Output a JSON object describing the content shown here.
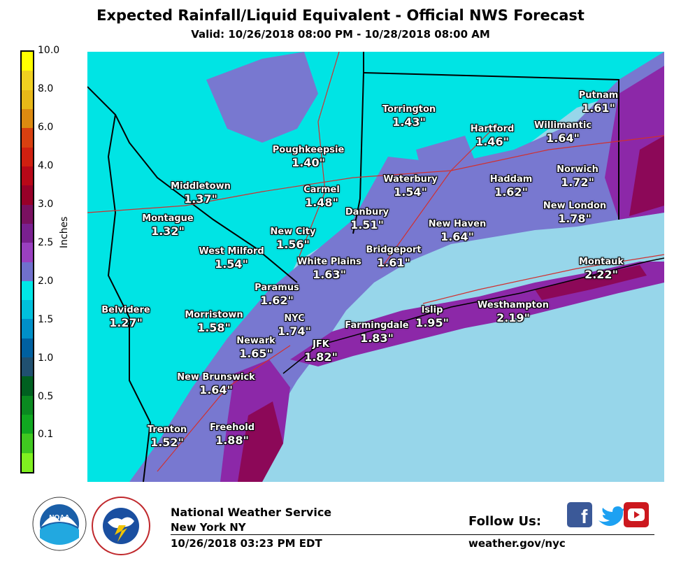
{
  "header": {
    "title": "Expected Rainfall/Liquid Equivalent - Official NWS Forecast",
    "valid": "Valid: 10/26/2018 08:00 PM - 10/28/2018 08:00 AM"
  },
  "legend": {
    "unit": "Inches",
    "labels": [
      "10.0",
      "8.0",
      "6.0",
      "4.0",
      "3.0",
      "2.5",
      "2.0",
      "1.5",
      "1.0",
      "0.5",
      "0.1"
    ],
    "colors": [
      "#ffff00",
      "#f0d020",
      "#e8b818",
      "#dc8a10",
      "#d84010",
      "#d02010",
      "#b80818",
      "#980028",
      "#7a1060",
      "#7a2090",
      "#9a40c0",
      "#7070cc",
      "#00e6e6",
      "#00c0dc",
      "#0090c8",
      "#0060a0",
      "#205070",
      "#006020",
      "#0a8a20",
      "#10a820",
      "#40c820",
      "#80f020"
    ]
  },
  "map": {
    "colors": {
      "ocean": "#97d6ea",
      "low": "#00e4e4",
      "mid": "#7878d0",
      "high": "#8c28a8",
      "vhigh": "#8c0858"
    },
    "cities": [
      {
        "name": "Torrington",
        "value": "1.43\""
      },
      {
        "name": "Putnam",
        "value": "1.61\""
      },
      {
        "name": "Hartford",
        "value": "1.46\""
      },
      {
        "name": "Willimantic",
        "value": "1.64\""
      },
      {
        "name": "Poughkeepsie",
        "value": "1.40\""
      },
      {
        "name": "Norwich",
        "value": "1.72\""
      },
      {
        "name": "Middletown",
        "value": "1.37\""
      },
      {
        "name": "Carmel",
        "value": "1.48\""
      },
      {
        "name": "Waterbury",
        "value": "1.54\""
      },
      {
        "name": "Haddam",
        "value": "1.62\""
      },
      {
        "name": "Danbury",
        "value": "1.51\""
      },
      {
        "name": "New London",
        "value": "1.78\""
      },
      {
        "name": "Montague",
        "value": "1.32\""
      },
      {
        "name": "New City",
        "value": "1.56\""
      },
      {
        "name": "New Haven",
        "value": "1.64\""
      },
      {
        "name": "West Milford",
        "value": "1.54\""
      },
      {
        "name": "Bridgeport",
        "value": "1.61\""
      },
      {
        "name": "White Plains",
        "value": "1.63\""
      },
      {
        "name": "Montauk",
        "value": "2.22\""
      },
      {
        "name": "Paramus",
        "value": "1.62\""
      },
      {
        "name": "Belvidere",
        "value": "1.27\""
      },
      {
        "name": "Westhampton",
        "value": "2.19\""
      },
      {
        "name": "Morristown",
        "value": "1.58\""
      },
      {
        "name": "NYC",
        "value": "1.74\""
      },
      {
        "name": "Islip",
        "value": "1.95\""
      },
      {
        "name": "Farmingdale",
        "value": "1.83\""
      },
      {
        "name": "Newark",
        "value": "1.65\""
      },
      {
        "name": "JFK",
        "value": "1.82\""
      },
      {
        "name": "New Brunswick",
        "value": "1.64\""
      },
      {
        "name": "Trenton",
        "value": "1.52\""
      },
      {
        "name": "Freehold",
        "value": "1.88\""
      }
    ]
  },
  "footer": {
    "org": "National Weather Service",
    "office": "New York NY",
    "issued": "10/26/2018 03:23 PM EDT",
    "follow": "Follow Us:",
    "site": "weather.gov/nyc",
    "noaa_logo_text": "NOAA",
    "nws_logo_text": "NATIONAL WEATHER SERVICE"
  },
  "icons": [
    "facebook-icon",
    "twitter-icon",
    "youtube-icon"
  ]
}
